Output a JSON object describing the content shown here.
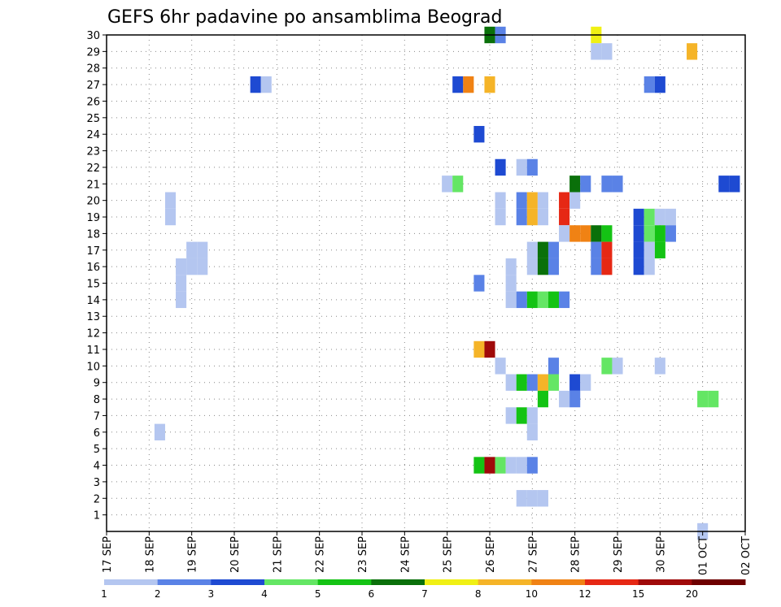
{
  "chart_data": {
    "type": "heatmap",
    "title": "GEFS 6hr padavine po ansamblima Beograd",
    "xlabel": "",
    "ylabel": "",
    "x_range": [
      "2020-09-17 00:00",
      "2020-10-02 00:00"
    ],
    "x_ticks": [
      {
        "date": "2020-09-17",
        "label": "17 SEP"
      },
      {
        "date": "2020-09-18",
        "label": "18 SEP"
      },
      {
        "date": "2020-09-19",
        "label": "19 SEP"
      },
      {
        "date": "2020-09-20",
        "label": "20 SEP"
      },
      {
        "date": "2020-09-21",
        "label": "21 SEP"
      },
      {
        "date": "2020-09-22",
        "label": "22 SEP"
      },
      {
        "date": "2020-09-23",
        "label": "23 SEP"
      },
      {
        "date": "2020-09-24",
        "label": "24 SEP"
      },
      {
        "date": "2020-09-25",
        "label": "25 SEP"
      },
      {
        "date": "2020-09-26",
        "label": "26 SEP"
      },
      {
        "date": "2020-09-27",
        "label": "27 SEP"
      },
      {
        "date": "2020-09-28",
        "label": "28 SEP"
      },
      {
        "date": "2020-09-29",
        "label": "29 SEP"
      },
      {
        "date": "2020-09-30",
        "label": "30 SEP"
      },
      {
        "date": "2020-10-01",
        "label": "01 OCT"
      },
      {
        "date": "2020-10-02",
        "label": "02 OCT"
      }
    ],
    "y_ticks": [
      1,
      2,
      3,
      4,
      5,
      6,
      7,
      8,
      9,
      10,
      11,
      12,
      13,
      14,
      15,
      16,
      17,
      18,
      19,
      20,
      21,
      22,
      23,
      24,
      25,
      26,
      27,
      28,
      29,
      30
    ],
    "y_range": [
      0,
      30
    ],
    "grid": true,
    "colorbar": {
      "tick_labels": [
        "1",
        "2",
        "3",
        "4",
        "5",
        "6",
        "7",
        "8",
        "10",
        "12",
        "15",
        "20"
      ],
      "colors": [
        "#b4c6f0",
        "#5a82e6",
        "#1e4ad2",
        "#64e664",
        "#14c314",
        "#0a700a",
        "#f0f014",
        "#f5b428",
        "#f08214",
        "#e62814",
        "#a00a0a",
        "#6e0000"
      ]
    },
    "cells": [
      {
        "member": 30,
        "time": "2020-09-26 00:00",
        "color": "#0a700a"
      },
      {
        "member": 30,
        "time": "2020-09-26 06:00",
        "color": "#5a82e6"
      },
      {
        "member": 30,
        "time": "2020-09-28 12:00",
        "color": "#f0f014"
      },
      {
        "member": 29,
        "time": "2020-09-28 12:00",
        "color": "#b4c6f0"
      },
      {
        "member": 29,
        "time": "2020-09-28 18:00",
        "color": "#b4c6f0"
      },
      {
        "member": 29,
        "time": "2020-09-30 18:00",
        "color": "#f5b428"
      },
      {
        "member": 27,
        "time": "2020-09-20 12:00",
        "color": "#1e4ad2"
      },
      {
        "member": 27,
        "time": "2020-09-20 18:00",
        "color": "#b4c6f0"
      },
      {
        "member": 27,
        "time": "2020-09-25 06:00",
        "color": "#1e4ad2"
      },
      {
        "member": 27,
        "time": "2020-09-25 12:00",
        "color": "#f08214"
      },
      {
        "member": 27,
        "time": "2020-09-26 00:00",
        "color": "#f5b428"
      },
      {
        "member": 27,
        "time": "2020-09-29 18:00",
        "color": "#5a82e6"
      },
      {
        "member": 27,
        "time": "2020-09-30 00:00",
        "color": "#1e4ad2"
      },
      {
        "member": 24,
        "time": "2020-09-25 18:00",
        "color": "#1e4ad2"
      },
      {
        "member": 22,
        "time": "2020-09-26 06:00",
        "color": "#1e4ad2"
      },
      {
        "member": 22,
        "time": "2020-09-26 18:00",
        "color": "#b4c6f0"
      },
      {
        "member": 22,
        "time": "2020-09-27 00:00",
        "color": "#5a82e6"
      },
      {
        "member": 21,
        "time": "2020-09-25 00:00",
        "color": "#b4c6f0"
      },
      {
        "member": 21,
        "time": "2020-09-25 06:00",
        "color": "#64e664"
      },
      {
        "member": 21,
        "time": "2020-09-28 00:00",
        "color": "#0a700a"
      },
      {
        "member": 21,
        "time": "2020-09-28 06:00",
        "color": "#5a82e6"
      },
      {
        "member": 21,
        "time": "2020-09-28 18:00",
        "color": "#5a82e6"
      },
      {
        "member": 21,
        "time": "2020-09-29 00:00",
        "color": "#5a82e6"
      },
      {
        "member": 21,
        "time": "2020-10-01 12:00",
        "color": "#1e4ad2"
      },
      {
        "member": 21,
        "time": "2020-10-01 18:00",
        "color": "#1e4ad2"
      },
      {
        "member": 20,
        "time": "2020-09-18 12:00",
        "color": "#b4c6f0"
      },
      {
        "member": 19,
        "time": "2020-09-18 12:00",
        "color": "#b4c6f0"
      },
      {
        "member": 20,
        "time": "2020-09-26 06:00",
        "color": "#b4c6f0"
      },
      {
        "member": 19,
        "time": "2020-09-26 06:00",
        "color": "#b4c6f0"
      },
      {
        "member": 20,
        "time": "2020-09-26 18:00",
        "color": "#5a82e6"
      },
      {
        "member": 20,
        "time": "2020-09-27 00:00",
        "color": "#f5b428"
      },
      {
        "member": 20,
        "time": "2020-09-27 06:00",
        "color": "#b4c6f0"
      },
      {
        "member": 19,
        "time": "2020-09-26 18:00",
        "color": "#5a82e6"
      },
      {
        "member": 19,
        "time": "2020-09-27 00:00",
        "color": "#f5b428"
      },
      {
        "member": 19,
        "time": "2020-09-27 06:00",
        "color": "#b4c6f0"
      },
      {
        "member": 20,
        "time": "2020-09-27 18:00",
        "color": "#e62814"
      },
      {
        "member": 20,
        "time": "2020-09-28 00:00",
        "color": "#b4c6f0"
      },
      {
        "member": 19,
        "time": "2020-09-27 18:00",
        "color": "#e62814"
      },
      {
        "member": 18,
        "time": "2020-09-27 18:00",
        "color": "#b4c6f0"
      },
      {
        "member": 18,
        "time": "2020-09-28 00:00",
        "color": "#f08214"
      },
      {
        "member": 18,
        "time": "2020-09-28 06:00",
        "color": "#f08214"
      },
      {
        "member": 18,
        "time": "2020-09-28 12:00",
        "color": "#0a700a"
      },
      {
        "member": 18,
        "time": "2020-09-28 18:00",
        "color": "#14c314"
      },
      {
        "member": 19,
        "time": "2020-09-29 12:00",
        "color": "#1e4ad2"
      },
      {
        "member": 18,
        "time": "2020-09-29 12:00",
        "color": "#1e4ad2"
      },
      {
        "member": 19,
        "time": "2020-09-29 18:00",
        "color": "#64e664"
      },
      {
        "member": 18,
        "time": "2020-09-29 18:00",
        "color": "#64e664"
      },
      {
        "member": 19,
        "time": "2020-09-30 00:00",
        "color": "#b4c6f0"
      },
      {
        "member": 19,
        "time": "2020-09-30 06:00",
        "color": "#b4c6f0"
      },
      {
        "member": 18,
        "time": "2020-09-30 06:00",
        "color": "#5a82e6"
      },
      {
        "member": 18,
        "time": "2020-09-30 00:00",
        "color": "#14c314"
      },
      {
        "member": 17,
        "time": "2020-09-30 00:00",
        "color": "#14c314"
      },
      {
        "member": 17,
        "time": "2020-09-19 00:00",
        "color": "#b4c6f0"
      },
      {
        "member": 17,
        "time": "2020-09-19 06:00",
        "color": "#b4c6f0"
      },
      {
        "member": 16,
        "time": "2020-09-18 18:00",
        "color": "#b4c6f0"
      },
      {
        "member": 16,
        "time": "2020-09-19 00:00",
        "color": "#b4c6f0"
      },
      {
        "member": 16,
        "time": "2020-09-19 06:00",
        "color": "#b4c6f0"
      },
      {
        "member": 15,
        "time": "2020-09-18 18:00",
        "color": "#b4c6f0"
      },
      {
        "member": 14,
        "time": "2020-09-18 18:00",
        "color": "#b4c6f0"
      },
      {
        "member": 17,
        "time": "2020-09-27 00:00",
        "color": "#b4c6f0"
      },
      {
        "member": 16,
        "time": "2020-09-27 00:00",
        "color": "#b4c6f0"
      },
      {
        "member": 17,
        "time": "2020-09-27 06:00",
        "color": "#0a700a"
      },
      {
        "member": 16,
        "time": "2020-09-27 06:00",
        "color": "#0a700a"
      },
      {
        "member": 17,
        "time": "2020-09-27 12:00",
        "color": "#5a82e6"
      },
      {
        "member": 16,
        "time": "2020-09-27 12:00",
        "color": "#5a82e6"
      },
      {
        "member": 17,
        "time": "2020-09-28 12:00",
        "color": "#5a82e6"
      },
      {
        "member": 16,
        "time": "2020-09-28 12:00",
        "color": "#5a82e6"
      },
      {
        "member": 17,
        "time": "2020-09-28 18:00",
        "color": "#e62814"
      },
      {
        "member": 16,
        "time": "2020-09-28 18:00",
        "color": "#e62814"
      },
      {
        "member": 17,
        "time": "2020-09-29 12:00",
        "color": "#1e4ad2"
      },
      {
        "member": 16,
        "time": "2020-09-29 12:00",
        "color": "#1e4ad2"
      },
      {
        "member": 17,
        "time": "2020-09-29 18:00",
        "color": "#b4c6f0"
      },
      {
        "member": 16,
        "time": "2020-09-29 18:00",
        "color": "#b4c6f0"
      },
      {
        "member": 16,
        "time": "2020-09-26 12:00",
        "color": "#b4c6f0"
      },
      {
        "member": 15,
        "time": "2020-09-26 12:00",
        "color": "#b4c6f0"
      },
      {
        "member": 14,
        "time": "2020-09-26 12:00",
        "color": "#b4c6f0"
      },
      {
        "member": 15,
        "time": "2020-09-25 18:00",
        "color": "#5a82e6"
      },
      {
        "member": 14,
        "time": "2020-09-26 18:00",
        "color": "#5a82e6"
      },
      {
        "member": 14,
        "time": "2020-09-27 00:00",
        "color": "#14c314"
      },
      {
        "member": 14,
        "time": "2020-09-27 06:00",
        "color": "#64e664"
      },
      {
        "member": 14,
        "time": "2020-09-27 12:00",
        "color": "#14c314"
      },
      {
        "member": 14,
        "time": "2020-09-27 18:00",
        "color": "#5a82e6"
      },
      {
        "member": 11,
        "time": "2020-09-25 18:00",
        "color": "#f5b428"
      },
      {
        "member": 11,
        "time": "2020-09-26 00:00",
        "color": "#a00a0a"
      },
      {
        "member": 10,
        "time": "2020-09-26 06:00",
        "color": "#b4c6f0"
      },
      {
        "member": 10,
        "time": "2020-09-27 12:00",
        "color": "#5a82e6"
      },
      {
        "member": 10,
        "time": "2020-09-28 18:00",
        "color": "#64e664"
      },
      {
        "member": 10,
        "time": "2020-09-29 00:00",
        "color": "#b4c6f0"
      },
      {
        "member": 10,
        "time": "2020-09-30 00:00",
        "color": "#b4c6f0"
      },
      {
        "member": 9,
        "time": "2020-09-26 12:00",
        "color": "#b4c6f0"
      },
      {
        "member": 9,
        "time": "2020-09-26 18:00",
        "color": "#14c314"
      },
      {
        "member": 9,
        "time": "2020-09-27 00:00",
        "color": "#5a82e6"
      },
      {
        "member": 9,
        "time": "2020-09-27 06:00",
        "color": "#f5b428"
      },
      {
        "member": 9,
        "time": "2020-09-27 12:00",
        "color": "#64e664"
      },
      {
        "member": 9,
        "time": "2020-09-28 00:00",
        "color": "#1e4ad2"
      },
      {
        "member": 9,
        "time": "2020-09-28 06:00",
        "color": "#b4c6f0"
      },
      {
        "member": 8,
        "time": "2020-09-27 06:00",
        "color": "#14c314"
      },
      {
        "member": 8,
        "time": "2020-09-27 18:00",
        "color": "#b4c6f0"
      },
      {
        "member": 8,
        "time": "2020-09-28 00:00",
        "color": "#5a82e6"
      },
      {
        "member": 8,
        "time": "2020-10-01 00:00",
        "color": "#64e664"
      },
      {
        "member": 8,
        "time": "2020-10-01 06:00",
        "color": "#64e664"
      },
      {
        "member": 7,
        "time": "2020-09-26 12:00",
        "color": "#b4c6f0"
      },
      {
        "member": 7,
        "time": "2020-09-26 18:00",
        "color": "#14c314"
      },
      {
        "member": 7,
        "time": "2020-09-27 00:00",
        "color": "#b4c6f0"
      },
      {
        "member": 6,
        "time": "2020-09-27 00:00",
        "color": "#b4c6f0"
      },
      {
        "member": 6,
        "time": "2020-09-18 06:00",
        "color": "#b4c6f0"
      },
      {
        "member": 4,
        "time": "2020-09-25 18:00",
        "color": "#14c314"
      },
      {
        "member": 4,
        "time": "2020-09-26 00:00",
        "color": "#a00a0a"
      },
      {
        "member": 4,
        "time": "2020-09-26 06:00",
        "color": "#64e664"
      },
      {
        "member": 4,
        "time": "2020-09-26 12:00",
        "color": "#b4c6f0"
      },
      {
        "member": 4,
        "time": "2020-09-26 18:00",
        "color": "#b4c6f0"
      },
      {
        "member": 4,
        "time": "2020-09-27 00:00",
        "color": "#5a82e6"
      },
      {
        "member": 2,
        "time": "2020-09-26 18:00",
        "color": "#b4c6f0"
      },
      {
        "member": 2,
        "time": "2020-09-27 00:00",
        "color": "#b4c6f0"
      },
      {
        "member": 2,
        "time": "2020-09-27 06:00",
        "color": "#b4c6f0"
      },
      {
        "member": 0,
        "time": "2020-10-01 00:00",
        "color": "#b4c6f0"
      }
    ]
  }
}
